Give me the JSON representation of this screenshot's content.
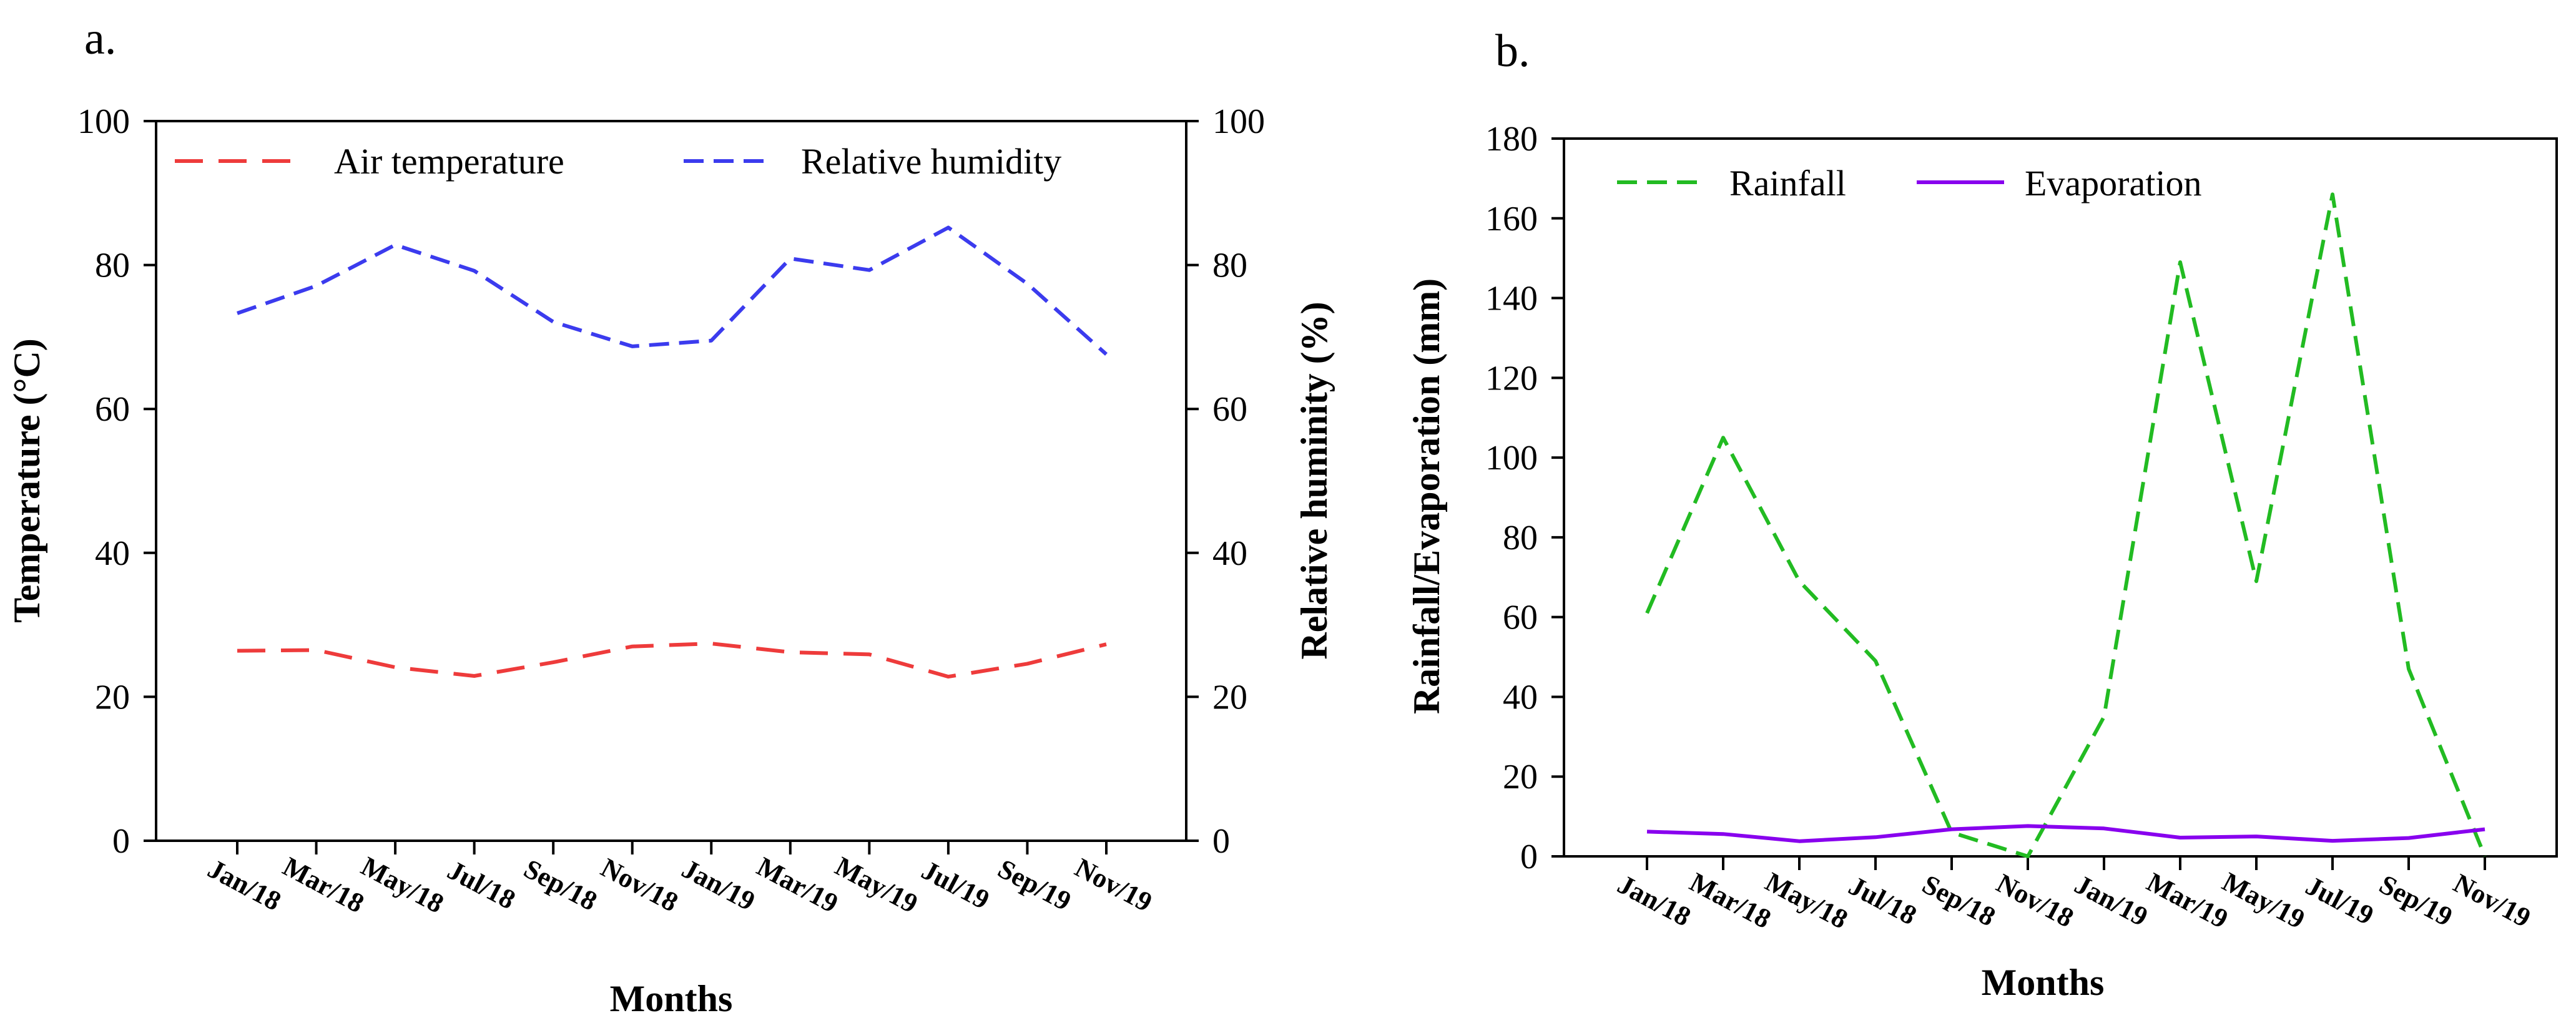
{
  "panels": {
    "a": {
      "label": "a."
    },
    "b": {
      "label": "b."
    }
  },
  "colors": {
    "air_temperature": "#ee3b3b",
    "relative_humidity": "#3b3bee",
    "rainfall": "#22bb22",
    "evaporation": "#8800ee",
    "axis": "#000000"
  },
  "chart_data": [
    {
      "type": "line",
      "title": "",
      "xlabel": "Months",
      "ylabel": "Temperature (°C)",
      "y2label": "Relative huminity (%)",
      "ylim": [
        0,
        100
      ],
      "y2lim": [
        0,
        100
      ],
      "yticks": [
        0,
        20,
        40,
        60,
        80,
        100
      ],
      "y2ticks": [
        0,
        20,
        40,
        60,
        80,
        100
      ],
      "categories": [
        "Jan/18",
        "Mar/18",
        "May/18",
        "Jul/18",
        "Sep/18",
        "Nov/18",
        "Jan/19",
        "Mar/19",
        "May/19",
        "Jul/19",
        "Sep/19",
        "Nov/19"
      ],
      "grid": false,
      "legend_position": "top",
      "series": [
        {
          "name": "Air temperature",
          "axis": "left",
          "style": "dashed",
          "values": [
            26.4,
            26.5,
            24.1,
            22.9,
            24.8,
            27.0,
            27.4,
            26.2,
            25.9,
            22.8,
            24.6,
            27.3
          ]
        },
        {
          "name": "Relative humidity",
          "axis": "right",
          "style": "dashed",
          "values": [
            73.3,
            77.1,
            82.8,
            79.2,
            72.1,
            68.7,
            69.5,
            80.9,
            79.3,
            85.2,
            77.4,
            67.6
          ]
        }
      ]
    },
    {
      "type": "line",
      "title": "",
      "xlabel": "Months",
      "ylabel": "Rainfall/Evaporation (mm)",
      "ylim": [
        0,
        180
      ],
      "yticks": [
        0,
        20,
        40,
        60,
        80,
        100,
        120,
        140,
        160,
        180
      ],
      "categories": [
        "Jan/18",
        "Mar/18",
        "May/18",
        "Jul/18",
        "Sep/18",
        "Nov/18",
        "Jan/19",
        "Mar/19",
        "May/19",
        "Jul/19",
        "Sep/19",
        "Nov/19"
      ],
      "grid": false,
      "legend_position": "top-left",
      "series": [
        {
          "name": "Rainfall",
          "style": "dashed",
          "values": [
            61,
            105,
            69,
            49,
            6,
            0,
            35,
            149,
            69,
            166,
            47,
            0
          ]
        },
        {
          "name": "Evaporation",
          "style": "solid",
          "values": [
            6.2,
            5.6,
            3.8,
            4.8,
            6.8,
            7.6,
            7.0,
            4.7,
            5.0,
            3.9,
            4.6,
            6.8
          ]
        }
      ]
    }
  ]
}
